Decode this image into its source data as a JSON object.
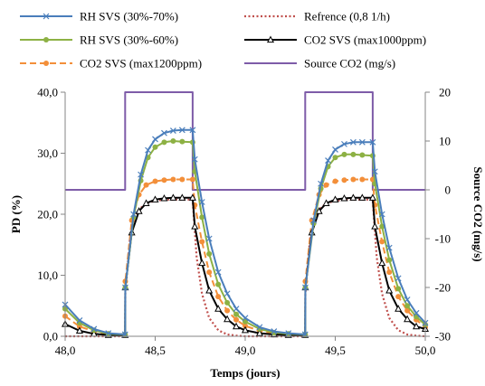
{
  "chart_data": {
    "type": "line",
    "xlabel": "Temps (jours)",
    "ylabel": "PD (%)",
    "y2label": "Source CO2 (mg/s)",
    "xlim": [
      48.0,
      50.0
    ],
    "ylim": [
      0,
      40
    ],
    "y2lim": [
      -30,
      20
    ],
    "x_ticks": [
      "48,0",
      "48,5",
      "49,0",
      "49,5",
      "50,0"
    ],
    "y_ticks": [
      "0,0",
      "10,0",
      "20,0",
      "30,0",
      "40,0"
    ],
    "y2_ticks": [
      "-30",
      "-20",
      "-10",
      "0",
      "10",
      "20"
    ],
    "grid": false,
    "legend_position": "top",
    "colors": {
      "rh70": "#4a7ebb",
      "ref": "#c0504d",
      "rh60": "#8db144",
      "co2_1000": "#000000",
      "co2_1200": "#f38f3a",
      "source": "#7e5ca8"
    },
    "legend": [
      {
        "key": "rh70",
        "label": "RH SVS (30%-70%)",
        "marker": "x",
        "dash": false
      },
      {
        "key": "ref",
        "label": "Refrence (0,8 1/h)",
        "marker": "none",
        "dash": true
      },
      {
        "key": "rh60",
        "label": "RH SVS (30%-60%)",
        "marker": "circle",
        "dash": false
      },
      {
        "key": "co2_1000",
        "label": "CO2 SVS (max1000ppm)",
        "marker": "triangle",
        "dash": false
      },
      {
        "key": "co2_1200",
        "label": "CO2 SVS (max1200ppm)",
        "marker": "circle",
        "dash": true
      },
      {
        "key": "source",
        "label": "Source CO2 (mg/s)",
        "marker": "none",
        "dash": false
      }
    ],
    "series": [
      {
        "key": "rh70",
        "name": "RH SVS (30%-70%)",
        "axis": "left",
        "x": [
          48.0,
          48.08,
          48.16,
          48.24,
          48.333,
          48.334,
          48.38,
          48.42,
          48.46,
          48.5,
          48.55,
          48.6,
          48.65,
          48.708,
          48.72,
          48.76,
          48.8,
          48.85,
          48.9,
          48.95,
          49.0,
          49.08,
          49.16,
          49.24,
          49.333,
          49.334,
          49.38,
          49.42,
          49.46,
          49.5,
          49.55,
          49.6,
          49.65,
          49.708,
          49.72,
          49.76,
          49.8,
          49.85,
          49.9,
          49.95,
          50.0
        ],
        "y": [
          5.2,
          2.6,
          1.2,
          0.5,
          0.3,
          8.0,
          20.0,
          26.5,
          30.5,
          32.3,
          33.3,
          33.7,
          33.8,
          33.8,
          29.0,
          22.0,
          16.0,
          10.5,
          7.0,
          4.5,
          3.0,
          1.5,
          0.8,
          0.5,
          0.3,
          8.0,
          19.0,
          25.0,
          28.8,
          30.6,
          31.5,
          31.8,
          31.8,
          31.8,
          27.0,
          20.0,
          14.5,
          9.5,
          6.0,
          3.8,
          2.2
        ]
      },
      {
        "key": "ref",
        "name": "Refrence (0,8 1/h)",
        "axis": "left",
        "x": [
          48.0,
          48.333,
          48.334,
          48.36,
          48.4,
          48.45,
          48.5,
          48.55,
          48.6,
          48.65,
          48.708,
          48.73,
          48.76,
          48.8,
          48.85,
          48.9,
          48.95,
          49.0,
          49.333,
          49.334,
          49.36,
          49.4,
          49.45,
          49.5,
          49.55,
          49.6,
          49.65,
          49.708,
          49.73,
          49.76,
          49.8,
          49.85,
          49.9,
          49.95,
          50.0
        ],
        "y": [
          0.0,
          0.0,
          7.0,
          16.0,
          20.5,
          21.8,
          22.2,
          22.4,
          22.4,
          22.4,
          22.4,
          13.0,
          7.0,
          3.0,
          1.0,
          0.3,
          0.1,
          0.0,
          0.0,
          7.0,
          16.0,
          20.5,
          21.8,
          22.2,
          22.4,
          22.4,
          22.4,
          22.4,
          13.0,
          7.0,
          3.0,
          1.0,
          0.3,
          0.1,
          0.0
        ]
      },
      {
        "key": "rh60",
        "name": "RH SVS (30%-60%)",
        "axis": "left",
        "x": [
          48.0,
          48.08,
          48.16,
          48.24,
          48.333,
          48.334,
          48.38,
          48.42,
          48.46,
          48.5,
          48.55,
          48.6,
          48.65,
          48.708,
          48.72,
          48.76,
          48.8,
          48.85,
          48.9,
          48.95,
          49.0,
          49.08,
          49.16,
          49.24,
          49.333,
          49.334,
          49.38,
          49.42,
          49.46,
          49.5,
          49.55,
          49.6,
          49.65,
          49.708,
          49.72,
          49.76,
          49.8,
          49.85,
          49.9,
          49.95,
          50.0
        ],
        "y": [
          4.5,
          2.2,
          1.0,
          0.4,
          0.3,
          8.0,
          19.5,
          25.5,
          29.3,
          31.0,
          31.8,
          32.0,
          31.9,
          31.8,
          27.0,
          19.5,
          13.5,
          8.5,
          5.5,
          3.6,
          2.4,
          1.2,
          0.6,
          0.4,
          0.3,
          8.0,
          18.5,
          24.2,
          27.8,
          29.3,
          29.8,
          29.8,
          29.7,
          29.6,
          25.0,
          18.0,
          12.5,
          7.8,
          5.0,
          3.2,
          1.9
        ]
      },
      {
        "key": "co2_1000",
        "name": "CO2 SVS (max1000ppm)",
        "axis": "left",
        "x": [
          48.0,
          48.08,
          48.16,
          48.24,
          48.333,
          48.334,
          48.37,
          48.41,
          48.45,
          48.5,
          48.55,
          48.6,
          48.65,
          48.708,
          48.72,
          48.76,
          48.8,
          48.85,
          48.9,
          48.95,
          49.0,
          49.08,
          49.16,
          49.24,
          49.333,
          49.334,
          49.37,
          49.41,
          49.45,
          49.5,
          49.55,
          49.6,
          49.65,
          49.708,
          49.72,
          49.76,
          49.8,
          49.85,
          49.9,
          49.95,
          50.0
        ],
        "y": [
          2.0,
          0.9,
          0.4,
          0.2,
          0.2,
          8.0,
          17.0,
          20.5,
          21.8,
          22.4,
          22.6,
          22.7,
          22.7,
          22.7,
          18.0,
          12.0,
          7.5,
          4.5,
          2.8,
          1.6,
          1.0,
          0.5,
          0.3,
          0.2,
          0.2,
          8.0,
          17.0,
          20.5,
          21.8,
          22.4,
          22.6,
          22.7,
          22.7,
          22.7,
          18.0,
          12.0,
          7.5,
          4.5,
          2.8,
          1.6,
          1.2
        ]
      },
      {
        "key": "co2_1200",
        "name": "CO2 SVS (max1200ppm)",
        "axis": "left",
        "x": [
          48.0,
          48.08,
          48.16,
          48.24,
          48.333,
          48.334,
          48.37,
          48.41,
          48.45,
          48.5,
          48.55,
          48.6,
          48.65,
          48.708,
          48.72,
          48.76,
          48.8,
          48.85,
          48.9,
          48.95,
          49.0,
          49.08,
          49.16,
          49.24,
          49.333,
          49.334,
          49.37,
          49.41,
          49.45,
          49.5,
          49.55,
          49.6,
          49.65,
          49.708,
          49.72,
          49.76,
          49.8,
          49.85,
          49.9,
          49.95,
          50.0
        ],
        "y": [
          3.3,
          1.6,
          0.8,
          0.4,
          0.3,
          9.0,
          19.0,
          23.2,
          24.8,
          25.4,
          25.6,
          25.7,
          25.7,
          25.7,
          21.5,
          15.5,
          10.5,
          6.5,
          4.2,
          2.7,
          1.7,
          0.9,
          0.5,
          0.3,
          0.3,
          9.0,
          19.0,
          23.2,
          24.8,
          25.4,
          25.6,
          25.7,
          25.7,
          25.7,
          21.5,
          15.5,
          10.5,
          6.5,
          4.2,
          2.7,
          1.5
        ]
      },
      {
        "key": "source",
        "name": "Source CO2 (mg/s)",
        "axis": "right",
        "x": [
          48.0,
          48.333,
          48.333,
          48.708,
          48.708,
          49.333,
          49.333,
          49.708,
          49.708,
          50.0
        ],
        "y": [
          0,
          0,
          20,
          20,
          0,
          0,
          20,
          20,
          0,
          0
        ]
      }
    ]
  }
}
